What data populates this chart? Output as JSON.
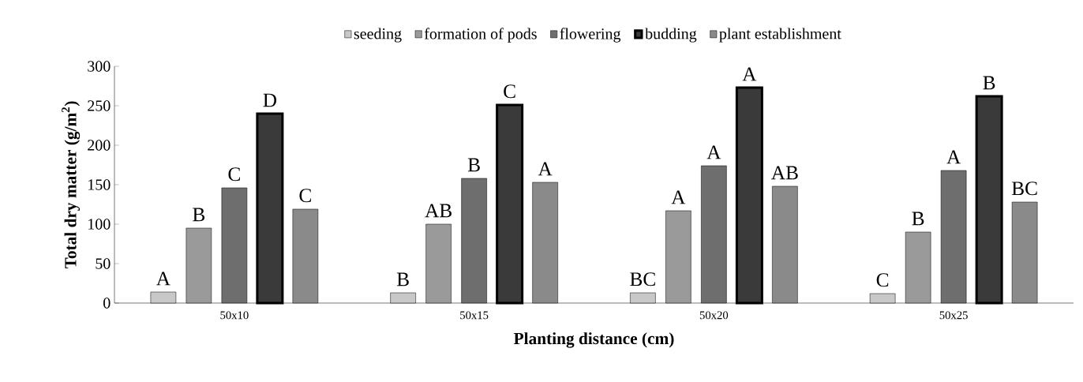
{
  "chart_data": {
    "type": "bar",
    "xlabel": "Planting distance (cm)",
    "ylabel": "Total dry matter (g/m$^{2}$)",
    "categories": [
      "50x10",
      "50x15",
      "50x20",
      "50x25"
    ],
    "series": [
      {
        "name": "seeding",
        "color": "#c8c8c8",
        "values": [
          14,
          13,
          13,
          12
        ]
      },
      {
        "name": "formation of pods",
        "color": "#9a9a9a",
        "values": [
          95,
          100,
          117,
          90
        ]
      },
      {
        "name": "flowering",
        "color": "#6e6e6e",
        "values": [
          146,
          158,
          174,
          168
        ]
      },
      {
        "name": "budding",
        "color": "#3a3a3a",
        "values": [
          240,
          251,
          273,
          262
        ]
      },
      {
        "name": "plant establishment",
        "color": "#8a8a8a",
        "values": [
          119,
          153,
          148,
          128
        ]
      }
    ],
    "ylim": [
      0,
      300
    ],
    "yticks": [
      0,
      50,
      100,
      150,
      200,
      250,
      300
    ],
    "grid": false,
    "legend": "top",
    "annotations": [
      "A",
      "B",
      "C",
      "D",
      "C",
      "B",
      "AB",
      "B",
      "C",
      "A",
      "BC",
      "A",
      "A",
      "A",
      "AB",
      "C",
      "B",
      "A",
      "B",
      "BC"
    ]
  }
}
